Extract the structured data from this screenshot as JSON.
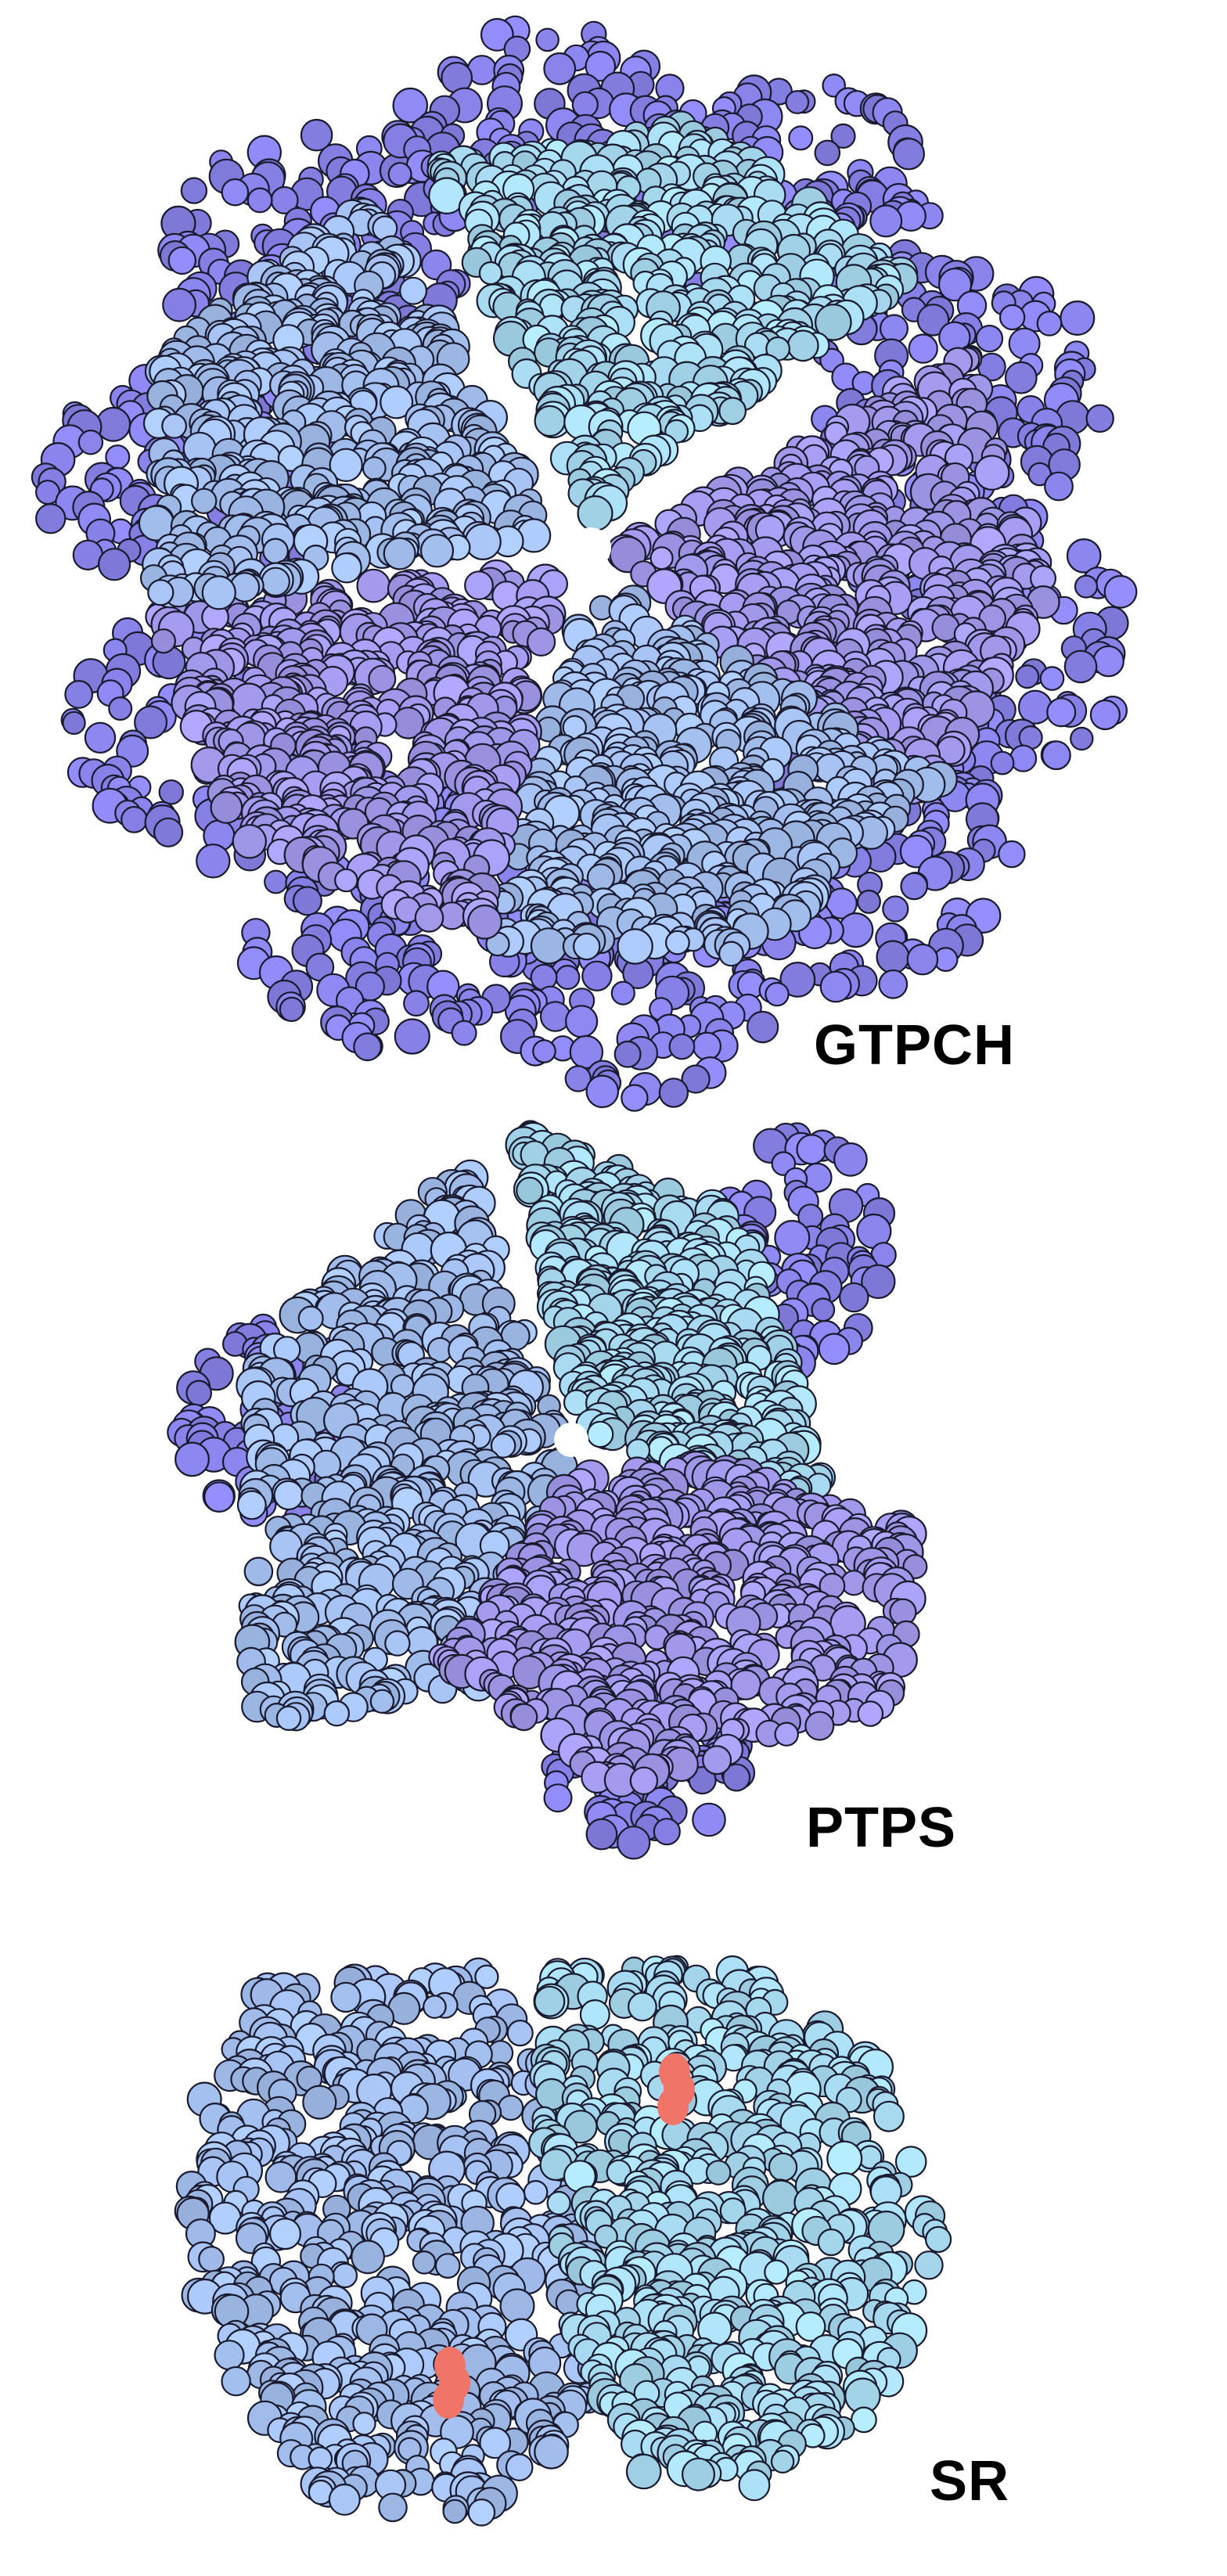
{
  "figure": {
    "background": "#ffffff",
    "colors": {
      "sky": "#a9dcf2",
      "periwinkle": "#a6c2f2",
      "lavender": "#a59cf0",
      "violet": "#8a84ec",
      "outline": "#1a1a2e",
      "ligand": "#f07468"
    },
    "structures": [
      {
        "name": "GTPCH",
        "icon": "protein-complex-icon"
      },
      {
        "name": "PTPS",
        "icon": "protein-complex-icon"
      },
      {
        "name": "SR",
        "icon": "protein-dimer-icon",
        "ligand_icon": "bound-ligand-icon"
      }
    ]
  }
}
